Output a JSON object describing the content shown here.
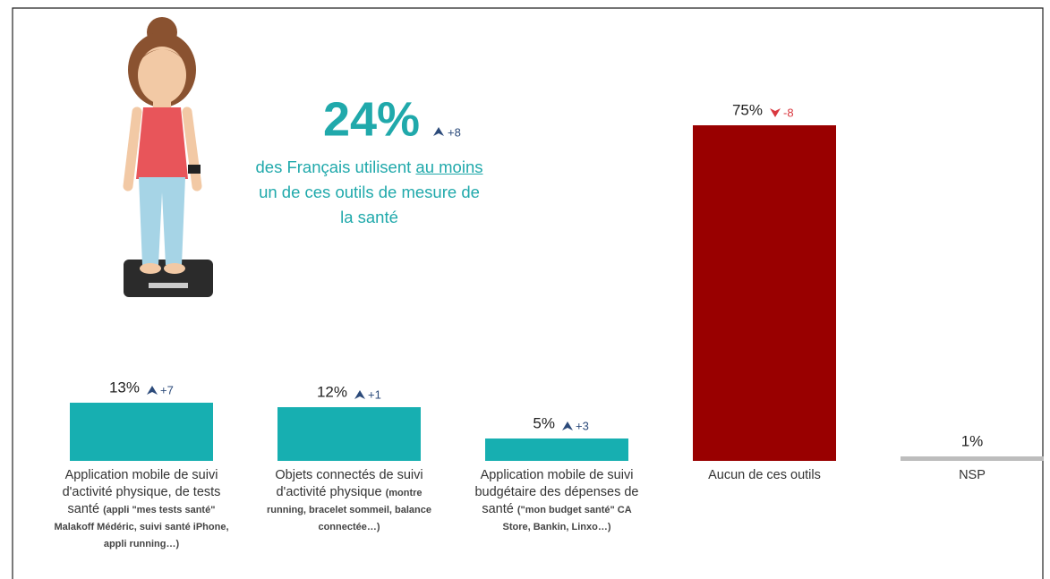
{
  "headline": {
    "figure": "24%",
    "change": "+8",
    "text_before": "des Français utilisent ",
    "text_underlined": "au moins",
    "text_after": " un de ces outils de mesure de la santé"
  },
  "chart_data": {
    "type": "bar",
    "categories": [
      "Application mobile de suivi d'activité physique, de tests santé",
      "Objets connectés de suivi d'activité physique",
      "Application mobile de suivi budgétaire des dépenses de santé",
      "Aucun de ces outils",
      "NSP"
    ],
    "category_notes": [
      "(appli \"mes tests santé\" Malakoff Médéric, suivi santé iPhone, appli running…)",
      "(montre running, bracelet sommeil, balance connectée…)",
      "(\"mon budget santé\" CA Store, Bankin, Linxo…)",
      null,
      null
    ],
    "values": [
      13,
      12,
      5,
      75,
      1
    ],
    "value_labels": [
      "13%",
      "12%",
      "5%",
      "75%",
      "1%"
    ],
    "changes": [
      "+7",
      "+1",
      "+3",
      "-8",
      null
    ],
    "colors": [
      "#17afb1",
      "#17afb1",
      "#17afb1",
      "#990000",
      "#bdbdbd"
    ]
  }
}
